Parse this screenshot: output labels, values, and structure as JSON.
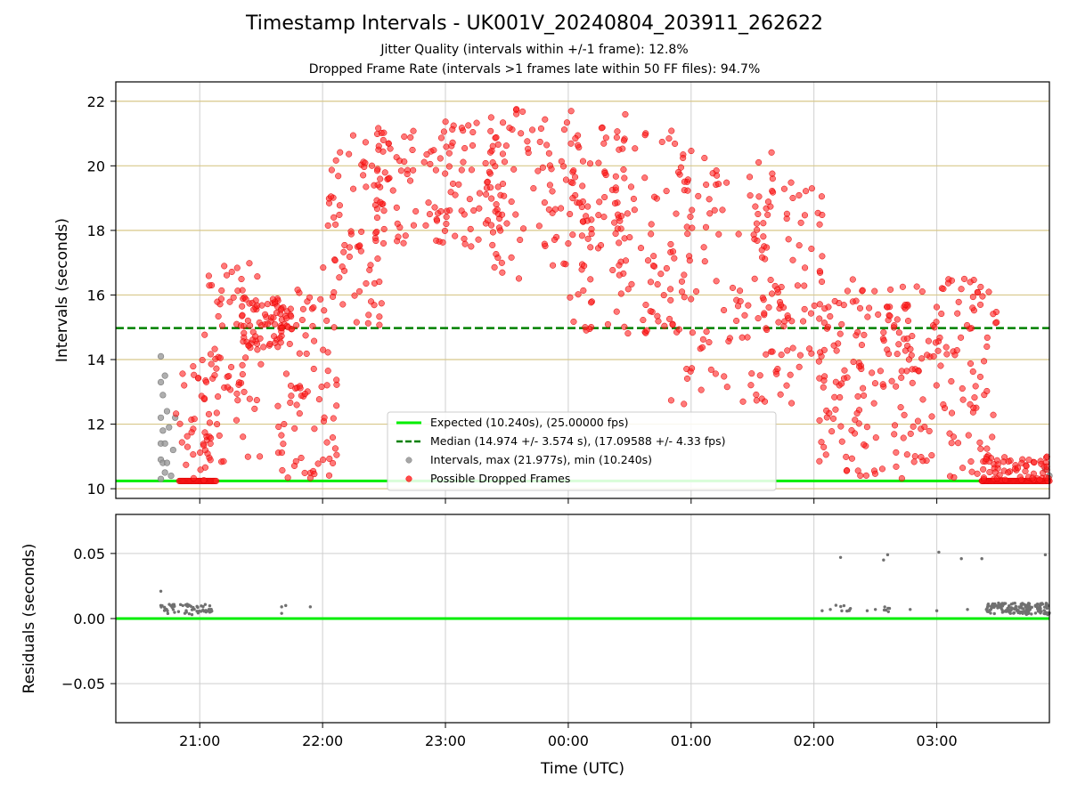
{
  "chart_data": [
    {
      "type": "scatter",
      "title": "Timestamp Intervals - UK001V_20240804_203911_262622",
      "subtitle_1": "Jitter Quality (intervals within +/-1 frame): 12.8%",
      "subtitle_2": "Dropped Frame Rate (intervals >1 frames late within 50 FF files): 94.7%",
      "ylabel": "Intervals (seconds)",
      "xlim": [
        "2024-08-04 20:19",
        "2024-08-05 03:55"
      ],
      "ylim": [
        9.7,
        22.6
      ],
      "x_ticks": [
        "21:00",
        "22:00",
        "23:00",
        "00:00",
        "01:00",
        "02:00",
        "03:00"
      ],
      "y_ticks": [
        10,
        12,
        14,
        16,
        18,
        20,
        22
      ],
      "grid": "vertical-gray, horizontal-gold",
      "legend": {
        "position": "bottom-center",
        "entries": [
          {
            "label": "Expected (10.240s), (25.00000 fps)",
            "color": "#00ee00",
            "style": "solid-line"
          },
          {
            "label": "Median (14.974 +/- 3.574 s), (17.09588 +/- 4.33 fps)",
            "color": "#008000",
            "style": "dashed-line"
          },
          {
            "label": "Intervals, max (21.977s), min (10.240s)",
            "color": "#808080",
            "style": "marker"
          },
          {
            "label": "Possible Dropped Frames",
            "color": "#ff0000",
            "style": "marker"
          }
        ]
      },
      "reference_lines": {
        "expected": 10.24,
        "median": 14.974
      },
      "series": [
        {
          "name": "Intervals, max (21.977s), min (10.240s)",
          "color": "#808080",
          "points": [
            [
              "20:41",
              10.3
            ],
            [
              "20:41",
              10.9
            ],
            [
              "20:41",
              11.4
            ],
            [
              "20:41",
              12.2
            ],
            [
              "20:41",
              13.3
            ],
            [
              "20:41",
              14.1
            ],
            [
              "20:42",
              10.8
            ],
            [
              "20:42",
              11.8
            ],
            [
              "20:42",
              12.9
            ],
            [
              "20:43",
              10.5
            ],
            [
              "20:43",
              11.4
            ],
            [
              "20:43",
              13.5
            ],
            [
              "20:44",
              10.8
            ],
            [
              "20:44",
              12.4
            ],
            [
              "20:45",
              11.9
            ],
            [
              "20:46",
              10.4
            ],
            [
              "20:47",
              11.2
            ],
            [
              "20:48",
              12.2
            ],
            [
              "03:53",
              10.6
            ],
            [
              "03:55",
              10.4
            ]
          ]
        },
        {
          "name": "Possible Dropped Frames",
          "color": "#ff0000",
          "clusters": [
            {
              "from": "20:48",
              "to": "21:09",
              "y_min": 10.24,
              "y_max": 14.0,
              "n": 40
            },
            {
              "from": "21:02",
              "to": "21:30",
              "y_min": 10.8,
              "y_max": 17.0,
              "n": 70
            },
            {
              "from": "21:20",
              "to": "21:45",
              "y_min": 14.3,
              "y_max": 15.9,
              "n": 70
            },
            {
              "from": "21:38",
              "to": "22:08",
              "y_min": 10.3,
              "y_max": 16.3,
              "n": 80
            },
            {
              "from": "22:00",
              "to": "22:30",
              "y_min": 15.0,
              "y_max": 21.0,
              "n": 70
            },
            {
              "from": "22:25",
              "to": "23:30",
              "y_min": 17.5,
              "y_max": 21.5,
              "n": 130
            },
            {
              "from": "23:20",
              "to": "00:30",
              "y_min": 16.5,
              "y_max": 21.9,
              "n": 120
            },
            {
              "from": "00:00",
              "to": "01:00",
              "y_min": 14.8,
              "y_max": 21.2,
              "n": 110
            },
            {
              "from": "00:50",
              "to": "01:50",
              "y_min": 12.6,
              "y_max": 20.5,
              "n": 110
            },
            {
              "from": "01:30",
              "to": "02:05",
              "y_min": 13.5,
              "y_max": 19.5,
              "n": 60
            },
            {
              "from": "02:02",
              "to": "02:40",
              "y_min": 10.3,
              "y_max": 16.5,
              "n": 110
            },
            {
              "from": "02:40",
              "to": "03:30",
              "y_min": 10.3,
              "y_max": 16.5,
              "n": 140
            },
            {
              "from": "03:20",
              "to": "03:55",
              "y_min": 10.24,
              "y_max": 11.0,
              "n": 60
            }
          ],
          "baseline_runs": [
            {
              "from": "20:50",
              "to": "21:08",
              "y": 10.24
            },
            {
              "from": "03:22",
              "to": "03:55",
              "y": 10.24
            }
          ]
        }
      ]
    },
    {
      "type": "scatter",
      "xlabel": "Time (UTC)",
      "ylabel": "Residuals (seconds)",
      "xlim": [
        "2024-08-04 20:19",
        "2024-08-05 03:55"
      ],
      "ylim": [
        -0.08,
        0.08
      ],
      "x_ticks": [
        "21:00",
        "22:00",
        "23:00",
        "00:00",
        "01:00",
        "02:00",
        "03:00"
      ],
      "y_ticks": [
        "0.05",
        "0.00",
        "−0.05"
      ],
      "grid": "both-gray",
      "reference_lines": {
        "zero": 0.0,
        "color": "#00ee00"
      },
      "series": [
        {
          "name": "",
          "color": "#707070",
          "points": [
            [
              "20:41",
              0.021
            ],
            [
              "20:41",
              0.01
            ],
            [
              "21:40",
              0.009
            ],
            [
              "21:40",
              0.004
            ],
            [
              "21:42",
              0.01
            ],
            [
              "21:54",
              0.009
            ],
            [
              "02:04",
              0.006
            ],
            [
              "02:08",
              0.007
            ],
            [
              "02:13",
              0.047
            ],
            [
              "02:26",
              0.006
            ],
            [
              "02:30",
              0.007
            ],
            [
              "02:34",
              0.045
            ],
            [
              "02:36",
              0.049
            ],
            [
              "02:47",
              0.007
            ],
            [
              "03:00",
              0.006
            ],
            [
              "03:01",
              0.051
            ],
            [
              "03:12",
              0.046
            ],
            [
              "03:15",
              0.007
            ],
            [
              "03:22",
              0.046
            ],
            [
              "03:28",
              0.009
            ],
            [
              "03:53",
              0.049
            ]
          ],
          "clusters": [
            {
              "from": "20:41",
              "to": "21:06",
              "y_min": 0.003,
              "y_max": 0.011,
              "n": 60
            },
            {
              "from": "02:10",
              "to": "02:18",
              "y_min": 0.005,
              "y_max": 0.012,
              "n": 10
            },
            {
              "from": "02:33",
              "to": "02:37",
              "y_min": 0.005,
              "y_max": 0.01,
              "n": 6
            },
            {
              "from": "03:24",
              "to": "03:55",
              "y_min": 0.003,
              "y_max": 0.012,
              "n": 160
            }
          ]
        }
      ]
    }
  ]
}
